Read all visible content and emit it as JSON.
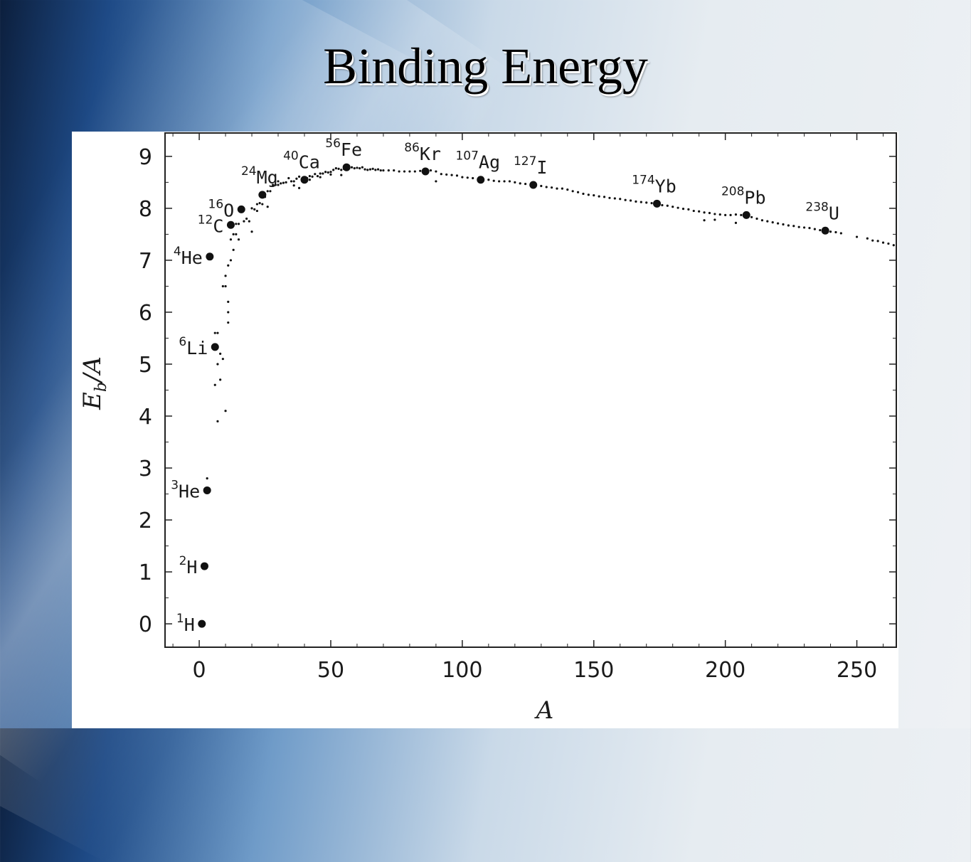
{
  "slide": {
    "title": "Binding Energy"
  },
  "chart_data": {
    "type": "scatter",
    "xlabel": "A",
    "ylabel_main": "E",
    "ylabel_sub": "b",
    "ylabel_tail": "/A",
    "xlim": [
      -13,
      265
    ],
    "ylim": [
      -0.45,
      9.45
    ],
    "xticks": [
      {
        "v": 0,
        "label": "0"
      },
      {
        "v": 50,
        "label": "50"
      },
      {
        "v": 100,
        "label": "100"
      },
      {
        "v": 150,
        "label": "150"
      },
      {
        "v": 200,
        "label": "200"
      },
      {
        "v": 250,
        "label": "250"
      }
    ],
    "yticks": [
      {
        "v": 0,
        "label": "0"
      },
      {
        "v": 1,
        "label": "1"
      },
      {
        "v": 2,
        "label": "2"
      },
      {
        "v": 3,
        "label": "3"
      },
      {
        "v": 4,
        "label": "4"
      },
      {
        "v": 5,
        "label": "5"
      },
      {
        "v": 6,
        "label": "6"
      },
      {
        "v": 7,
        "label": "7"
      },
      {
        "v": 8,
        "label": "8"
      },
      {
        "v": 9,
        "label": "9"
      }
    ],
    "labeled_nuclides": [
      {
        "mass": "1",
        "symbol": "H",
        "x": 1,
        "y": 0.0,
        "label_side": "left"
      },
      {
        "mass": "2",
        "symbol": "H",
        "x": 2,
        "y": 1.11,
        "label_side": "left"
      },
      {
        "mass": "3",
        "symbol": "He",
        "x": 3,
        "y": 2.57,
        "label_side": "left"
      },
      {
        "mass": "6",
        "symbol": "Li",
        "x": 6,
        "y": 5.33,
        "label_side": "left"
      },
      {
        "mass": "4",
        "symbol": "He",
        "x": 4,
        "y": 7.07,
        "label_side": "left"
      },
      {
        "mass": "12",
        "symbol": "C",
        "x": 12,
        "y": 7.68,
        "label_side": "left"
      },
      {
        "mass": "16",
        "symbol": "O",
        "x": 16,
        "y": 7.98,
        "label_side": "left"
      },
      {
        "mass": "24",
        "symbol": "Mg",
        "x": 24,
        "y": 8.26,
        "label_side": "above"
      },
      {
        "mass": "40",
        "symbol": "Ca",
        "x": 40,
        "y": 8.55,
        "label_side": "above"
      },
      {
        "mass": "56",
        "symbol": "Fe",
        "x": 56,
        "y": 8.79,
        "label_side": "above"
      },
      {
        "mass": "86",
        "symbol": "Kr",
        "x": 86,
        "y": 8.71,
        "label_side": "above"
      },
      {
        "mass": "107",
        "symbol": "Ag",
        "x": 107,
        "y": 8.55,
        "label_side": "above"
      },
      {
        "mass": "127",
        "symbol": "I",
        "x": 127,
        "y": 8.45,
        "label_side": "above"
      },
      {
        "mass": "174",
        "symbol": "Yb",
        "x": 174,
        "y": 8.09,
        "label_side": "above"
      },
      {
        "mass": "208",
        "symbol": "Pb",
        "x": 208,
        "y": 7.87,
        "label_side": "above"
      },
      {
        "mass": "238",
        "symbol": "U",
        "x": 238,
        "y": 7.57,
        "label_side": "above"
      }
    ],
    "curve_points": [
      [
        6,
        4.6
      ],
      [
        6,
        5.6
      ],
      [
        7,
        3.9
      ],
      [
        7,
        5.0
      ],
      [
        7,
        5.6
      ],
      [
        8,
        4.7
      ],
      [
        8,
        5.2
      ],
      [
        9,
        5.1
      ],
      [
        9,
        6.5
      ],
      [
        10,
        4.1
      ],
      [
        10,
        6.5
      ],
      [
        10,
        6.7
      ],
      [
        11,
        5.8
      ],
      [
        11,
        6.9
      ],
      [
        11,
        6.0
      ],
      [
        11,
        6.2
      ],
      [
        12,
        7.0
      ],
      [
        12,
        7.4
      ],
      [
        13,
        7.5
      ],
      [
        13,
        7.2
      ],
      [
        14,
        7.5
      ],
      [
        14,
        7.7
      ],
      [
        15,
        7.7
      ],
      [
        15,
        7.4
      ],
      [
        17,
        7.75
      ],
      [
        18,
        7.8
      ],
      [
        19,
        7.75
      ],
      [
        20,
        8.0
      ],
      [
        21,
        7.98
      ],
      [
        22,
        8.08
      ],
      [
        23,
        8.1
      ],
      [
        25,
        8.22
      ],
      [
        26,
        8.33
      ],
      [
        27,
        8.33
      ],
      [
        28,
        8.45
      ],
      [
        29,
        8.45
      ],
      [
        30,
        8.52
      ],
      [
        31,
        8.48
      ],
      [
        32,
        8.49
      ],
      [
        33,
        8.5
      ],
      [
        34,
        8.58
      ],
      [
        35,
        8.52
      ],
      [
        36,
        8.52
      ],
      [
        37,
        8.57
      ],
      [
        38,
        8.61
      ],
      [
        39,
        8.56
      ],
      [
        41,
        8.58
      ],
      [
        42,
        8.62
      ],
      [
        43,
        8.61
      ],
      [
        44,
        8.66
      ],
      [
        45,
        8.62
      ],
      [
        46,
        8.67
      ],
      [
        47,
        8.67
      ],
      [
        48,
        8.7
      ],
      [
        49,
        8.69
      ],
      [
        50,
        8.7
      ],
      [
        51,
        8.74
      ],
      [
        52,
        8.77
      ],
      [
        53,
        8.76
      ],
      [
        54,
        8.74
      ],
      [
        55,
        8.76
      ],
      [
        57,
        8.77
      ],
      [
        58,
        8.79
      ],
      [
        59,
        8.77
      ],
      [
        60,
        8.78
      ],
      [
        61,
        8.77
      ],
      [
        62,
        8.79
      ],
      [
        63,
        8.75
      ],
      [
        64,
        8.74
      ],
      [
        65,
        8.75
      ],
      [
        66,
        8.76
      ],
      [
        67,
        8.74
      ],
      [
        68,
        8.75
      ],
      [
        69,
        8.73
      ],
      [
        70,
        8.73
      ],
      [
        72,
        8.73
      ],
      [
        74,
        8.73
      ],
      [
        76,
        8.71
      ],
      [
        78,
        8.71
      ],
      [
        80,
        8.71
      ],
      [
        82,
        8.71
      ],
      [
        84,
        8.72
      ],
      [
        88,
        8.73
      ],
      [
        90,
        8.71
      ],
      [
        92,
        8.66
      ],
      [
        94,
        8.65
      ],
      [
        96,
        8.64
      ],
      [
        98,
        8.63
      ],
      [
        100,
        8.6
      ],
      [
        102,
        8.59
      ],
      [
        104,
        8.58
      ],
      [
        106,
        8.56
      ],
      [
        110,
        8.55
      ],
      [
        112,
        8.53
      ],
      [
        114,
        8.52
      ],
      [
        116,
        8.52
      ],
      [
        118,
        8.52
      ],
      [
        120,
        8.5
      ],
      [
        122,
        8.48
      ],
      [
        124,
        8.47
      ],
      [
        130,
        8.43
      ],
      [
        132,
        8.41
      ],
      [
        134,
        8.4
      ],
      [
        136,
        8.38
      ],
      [
        138,
        8.38
      ],
      [
        140,
        8.36
      ],
      [
        142,
        8.33
      ],
      [
        144,
        8.31
      ],
      [
        146,
        8.28
      ],
      [
        148,
        8.26
      ],
      [
        150,
        8.25
      ],
      [
        152,
        8.23
      ],
      [
        154,
        8.22
      ],
      [
        156,
        8.2
      ],
      [
        158,
        8.19
      ],
      [
        160,
        8.18
      ],
      [
        162,
        8.16
      ],
      [
        164,
        8.15
      ],
      [
        166,
        8.13
      ],
      [
        168,
        8.12
      ],
      [
        170,
        8.11
      ],
      [
        172,
        8.1
      ],
      [
        176,
        8.06
      ],
      [
        178,
        8.05
      ],
      [
        180,
        8.03
      ],
      [
        182,
        8.01
      ],
      [
        184,
        7.99
      ],
      [
        186,
        7.98
      ],
      [
        188,
        7.95
      ],
      [
        190,
        7.94
      ],
      [
        192,
        7.92
      ],
      [
        194,
        7.91
      ],
      [
        196,
        7.89
      ],
      [
        198,
        7.88
      ],
      [
        200,
        7.87
      ],
      [
        202,
        7.87
      ],
      [
        204,
        7.88
      ],
      [
        206,
        7.87
      ],
      [
        210,
        7.83
      ],
      [
        212,
        7.8
      ],
      [
        214,
        7.77
      ],
      [
        216,
        7.75
      ],
      [
        218,
        7.73
      ],
      [
        220,
        7.71
      ],
      [
        222,
        7.69
      ],
      [
        224,
        7.67
      ],
      [
        226,
        7.66
      ],
      [
        228,
        7.64
      ],
      [
        230,
        7.63
      ],
      [
        232,
        7.62
      ],
      [
        234,
        7.6
      ],
      [
        236,
        7.58
      ],
      [
        240,
        7.55
      ],
      [
        242,
        7.54
      ],
      [
        244,
        7.52
      ],
      [
        250,
        7.45
      ],
      [
        254,
        7.42
      ],
      [
        256,
        7.38
      ],
      [
        258,
        7.37
      ],
      [
        260,
        7.34
      ],
      [
        262,
        7.32
      ],
      [
        264,
        7.29
      ],
      [
        3,
        2.8
      ],
      [
        24,
        8.08
      ],
      [
        26,
        8.03
      ],
      [
        22,
        7.95
      ],
      [
        20,
        7.55
      ],
      [
        30,
        8.45
      ],
      [
        36,
        8.44
      ],
      [
        38,
        8.39
      ],
      [
        54,
        8.64
      ],
      [
        90,
        8.52
      ],
      [
        192,
        7.77
      ],
      [
        196,
        7.78
      ],
      [
        204,
        7.72
      ],
      [
        50,
        8.65
      ],
      [
        46,
        8.6
      ],
      [
        42,
        8.55
      ]
    ]
  }
}
